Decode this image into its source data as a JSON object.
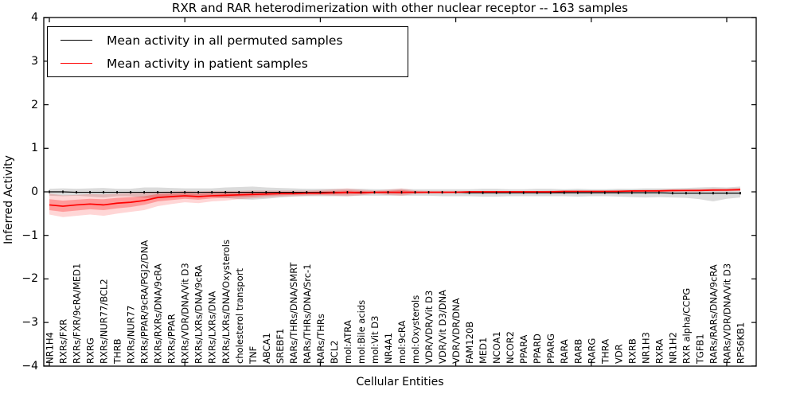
{
  "title": "RXR and RAR heterodimerization with other nuclear receptor -- 163 samples",
  "legend": {
    "items": [
      {
        "label": "Mean activity in all permuted samples",
        "color": "#000000"
      },
      {
        "label": "Mean activity in patient samples",
        "color": "#ff0000"
      }
    ]
  },
  "axes": {
    "ylabel": "Inferred Activity",
    "xlabel": "Cellular Entities",
    "ytick_labels": [
      "4",
      "3",
      "2",
      "1",
      "0",
      "−1",
      "−2",
      "−3",
      "−4"
    ]
  },
  "colors": {
    "permuted_line": "#000000",
    "patient_line": "#ff0000",
    "permuted_band": "rgba(0,0,0,0.14)",
    "patient_band": "rgba(255,0,0,0.16)",
    "patient_band_inner": "rgba(255,0,0,0.28)",
    "axis": "#000000"
  },
  "chart_data": {
    "type": "line",
    "title": "RXR and RAR heterodimerization with other nuclear receptor -- 163 samples",
    "xlabel": "Cellular Entities",
    "ylabel": "Inferred Activity",
    "ylim": [
      -4,
      4
    ],
    "yticks": [
      4,
      3,
      2,
      1,
      0,
      -1,
      -2,
      -3,
      -4
    ],
    "grid": false,
    "legend_position": "upper left",
    "categories": [
      "NR1H4",
      "RXRs/FXR",
      "RXRs/FXR/9cRA/MED1",
      "RXRG",
      "RXRs/NUR77/BCL2",
      "THRB",
      "RXRs/NUR77",
      "RXRs/PPAR/9cRA/PGJ2/DNA",
      "RXRs/RXRs/DNA/9cRA",
      "RXRs/PPAR",
      "RXRs/VDR/DNA/Vit D3",
      "RXRs/LXRs/DNA/9cRA",
      "RXRs/LXRs/DNA",
      "RXRs/LXRs/DNA/Oxysterols",
      "cholesterol transport",
      "TNF",
      "ABCA1",
      "SREBF1",
      "RARs/THRs/DNA/SMRT",
      "RARs/THRs/DNA/Src-1",
      "RARs/THRs",
      "BCL2",
      "mol:ATRA",
      "mol:Bile acids",
      "mol:Vit D3",
      "NR4A1",
      "mol:9cRA",
      "mol:Oxysterols",
      "VDR/VDR/Vit D3",
      "VDR/Vit D3/DNA",
      "VDR/VDR/DNA",
      "FAM120B",
      "MED1",
      "NCOA1",
      "NCOR2",
      "PPARA",
      "PPARD",
      "PPARG",
      "RARA",
      "RARB",
      "RARG",
      "THRA",
      "VDR",
      "RXRB",
      "NR1H3",
      "RXRA",
      "NR1H2",
      "RXR alpha/CCPG",
      "TGFB1",
      "RARs/RARs/DNA/9cRA",
      "RARs/VDR/DNA/Vit D3",
      "RPS6KB1"
    ],
    "series": [
      {
        "name": "Mean activity in all permuted samples",
        "color": "#000000",
        "values": [
          0,
          0,
          -0.01,
          -0.01,
          -0.01,
          -0.01,
          -0.01,
          -0.01,
          -0.01,
          -0.01,
          -0.01,
          -0.01,
          -0.01,
          -0.01,
          -0.01,
          -0.01,
          -0.01,
          -0.01,
          -0.01,
          -0.01,
          -0.01,
          -0.01,
          -0.01,
          -0.01,
          -0.01,
          -0.01,
          -0.01,
          -0.01,
          -0.01,
          -0.01,
          -0.01,
          -0.02,
          -0.02,
          -0.02,
          -0.02,
          -0.02,
          -0.02,
          -0.02,
          -0.02,
          -0.02,
          -0.02,
          -0.02,
          -0.02,
          -0.02,
          -0.02,
          -0.02,
          -0.03,
          -0.03,
          -0.03,
          -0.03,
          -0.03,
          -0.03
        ],
        "band_lo": [
          -0.09,
          -0.1,
          -0.09,
          -0.11,
          -0.13,
          -0.1,
          -0.1,
          -0.14,
          -0.15,
          -0.13,
          -0.12,
          -0.12,
          -0.11,
          -0.14,
          -0.17,
          -0.18,
          -0.16,
          -0.13,
          -0.11,
          -0.1,
          -0.1,
          -0.1,
          -0.1,
          -0.09,
          -0.09,
          -0.09,
          -0.09,
          -0.09,
          -0.09,
          -0.1,
          -0.1,
          -0.1,
          -0.11,
          -0.11,
          -0.1,
          -0.1,
          -0.1,
          -0.1,
          -0.1,
          -0.11,
          -0.1,
          -0.1,
          -0.11,
          -0.12,
          -0.13,
          -0.12,
          -0.13,
          -0.14,
          -0.17,
          -0.22,
          -0.16,
          -0.13
        ],
        "band_hi": [
          0.07,
          0.08,
          0.07,
          0.08,
          0.09,
          0.07,
          0.07,
          0.1,
          0.1,
          0.09,
          0.08,
          0.08,
          0.08,
          0.1,
          0.11,
          0.12,
          0.1,
          0.09,
          0.08,
          0.07,
          0.07,
          0.07,
          0.07,
          0.07,
          0.06,
          0.06,
          0.07,
          0.06,
          0.06,
          0.06,
          0.06,
          0.06,
          0.07,
          0.07,
          0.06,
          0.06,
          0.07,
          0.07,
          0.06,
          0.07,
          0.06,
          0.06,
          0.07,
          0.07,
          0.08,
          0.08,
          0.08,
          0.09,
          0.1,
          0.11,
          0.1,
          0.12
        ]
      },
      {
        "name": "Mean activity in patient samples",
        "color": "#ff0000",
        "values": [
          -0.3,
          -0.33,
          -0.3,
          -0.28,
          -0.3,
          -0.26,
          -0.24,
          -0.2,
          -0.13,
          -0.11,
          -0.09,
          -0.11,
          -0.09,
          -0.08,
          -0.07,
          -0.06,
          -0.05,
          -0.04,
          -0.04,
          -0.03,
          -0.03,
          -0.02,
          -0.01,
          -0.02,
          -0.01,
          -0.01,
          -0.01,
          -0.01,
          -0.01,
          -0.01,
          -0.01,
          0,
          0,
          0,
          0,
          0,
          0,
          0,
          0.01,
          0.01,
          0.01,
          0.01,
          0.01,
          0.02,
          0.02,
          0.02,
          0.03,
          0.03,
          0.03,
          0.04,
          0.04,
          0.05
        ],
        "band_inner_lo": [
          -0.42,
          -0.46,
          -0.43,
          -0.4,
          -0.42,
          -0.38,
          -0.35,
          -0.3,
          -0.22,
          -0.19,
          -0.16,
          -0.18,
          -0.15,
          -0.14,
          -0.12,
          -0.11,
          -0.09,
          -0.08,
          -0.07,
          -0.06,
          -0.06,
          -0.06,
          -0.06,
          -0.05,
          -0.03,
          -0.04,
          -0.05,
          -0.03,
          -0.02,
          -0.02,
          -0.02,
          -0.02,
          -0.01,
          -0.01,
          -0.01,
          -0.01,
          -0.01,
          -0.01,
          -0.01,
          0,
          0,
          0,
          0,
          0,
          0.01,
          0.01,
          0.01,
          0.02,
          0.02,
          0.02,
          0.03,
          0.03
        ],
        "band_inner_hi": [
          -0.17,
          -0.2,
          -0.18,
          -0.16,
          -0.17,
          -0.14,
          -0.12,
          -0.1,
          -0.05,
          -0.04,
          -0.03,
          -0.04,
          -0.03,
          -0.02,
          -0.02,
          -0.01,
          -0.01,
          0,
          0,
          0,
          0.01,
          0.02,
          0.03,
          0.02,
          0.01,
          0.02,
          0.04,
          0.01,
          0.01,
          0.01,
          0.01,
          0.01,
          0.01,
          0.01,
          0.01,
          0.01,
          0.01,
          0.01,
          0.02,
          0.02,
          0.02,
          0.02,
          0.03,
          0.03,
          0.03,
          0.04,
          0.04,
          0.05,
          0.05,
          0.06,
          0.06,
          0.07
        ],
        "band_outer_lo": [
          -0.52,
          -0.58,
          -0.55,
          -0.52,
          -0.55,
          -0.5,
          -0.46,
          -0.42,
          -0.33,
          -0.28,
          -0.24,
          -0.26,
          -0.22,
          -0.2,
          -0.17,
          -0.15,
          -0.13,
          -0.11,
          -0.1,
          -0.09,
          -0.08,
          -0.09,
          -0.1,
          -0.08,
          -0.05,
          -0.07,
          -0.09,
          -0.05,
          -0.04,
          -0.04,
          -0.03,
          -0.03,
          -0.03,
          -0.02,
          -0.02,
          -0.02,
          -0.02,
          -0.02,
          -0.02,
          -0.01,
          -0.01,
          -0.01,
          -0.01,
          -0.01,
          0,
          0,
          0,
          0.01,
          0.01,
          0.01,
          0.01,
          0.02
        ],
        "band_outer_hi": [
          -0.04,
          -0.08,
          -0.07,
          -0.05,
          -0.06,
          -0.04,
          -0.03,
          -0.02,
          0,
          0.01,
          0.02,
          0.01,
          0.02,
          0.02,
          0.02,
          0.03,
          0.03,
          0.03,
          0.03,
          0.03,
          0.04,
          0.06,
          0.08,
          0.05,
          0.03,
          0.05,
          0.08,
          0.03,
          0.02,
          0.02,
          0.02,
          0.02,
          0.02,
          0.02,
          0.02,
          0.02,
          0.02,
          0.03,
          0.03,
          0.03,
          0.03,
          0.03,
          0.04,
          0.04,
          0.05,
          0.05,
          0.06,
          0.06,
          0.07,
          0.08,
          0.08,
          0.09
        ]
      }
    ]
  }
}
